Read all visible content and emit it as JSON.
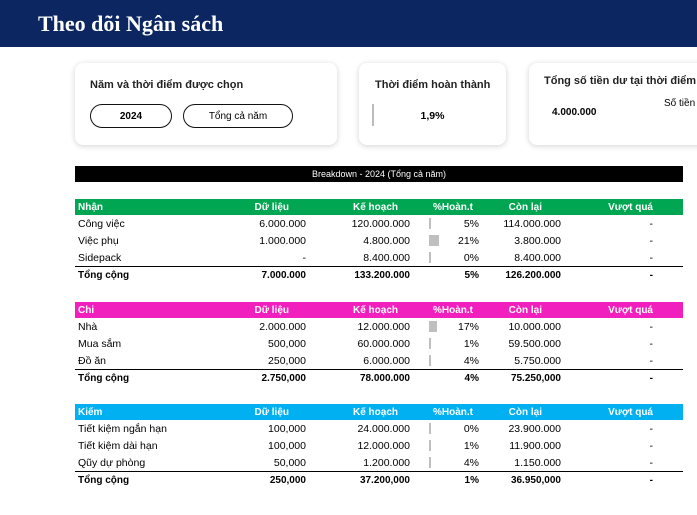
{
  "title": "Theo dõi Ngân sách",
  "cards": {
    "year_card": {
      "title": "Năm và thời điểm được chọn",
      "year": "2024",
      "period": "Tổng cả năm"
    },
    "completion_card": {
      "title": "Thời điểm hoàn thành",
      "value": "1,9%",
      "progress": 0.019
    },
    "balance_card": {
      "title": "Tổng số tiền dư tại thời điểm",
      "value": "4.000.000",
      "sub": "Số tiền"
    }
  },
  "banner": "Breakdown - 2024 (Tổng cả năm)",
  "colors": {
    "header": "#0b2660",
    "income": "#00a651",
    "expense": "#f21fbf",
    "savings": "#00b0f0"
  },
  "columns": {
    "data": "Dữ liệu",
    "plan": "Kế hoạch",
    "pct": "%Hoàn.t",
    "remaining": "Còn lại",
    "over": "Vượt quá"
  },
  "sections": [
    {
      "name": "Nhận",
      "rows": [
        {
          "label": "Công việc",
          "data": "6.000.000",
          "plan": "120.000.000",
          "pct": "5%",
          "pct_value": 0.05,
          "remaining": "114.000.000",
          "over": "-"
        },
        {
          "label": "Việc phụ",
          "data": "1.000.000",
          "plan": "4.800.000",
          "pct": "21%",
          "pct_value": 0.21,
          "remaining": "3.800.000",
          "over": "-"
        },
        {
          "label": "Sidepack",
          "data": "-",
          "plan": "8.400.000",
          "pct": "0%",
          "pct_value": 0,
          "remaining": "8.400.000",
          "over": "-"
        }
      ],
      "total": {
        "label": "Tổng cộng",
        "data": "7.000.000",
        "plan": "133.200.000",
        "pct": "5%",
        "remaining": "126.200.000",
        "over": "-"
      }
    },
    {
      "name": "Chi",
      "rows": [
        {
          "label": "Nhà",
          "data": "2.000.000",
          "plan": "12.000.000",
          "pct": "17%",
          "pct_value": 0.17,
          "remaining": "10.000.000",
          "over": "-"
        },
        {
          "label": "Mua sắm",
          "data": "500,000",
          "plan": "60.000.000",
          "pct": "1%",
          "pct_value": 0.01,
          "remaining": "59.500.000",
          "over": "-"
        },
        {
          "label": "Đồ ăn",
          "data": "250,000",
          "plan": "6.000.000",
          "pct": "4%",
          "pct_value": 0.04,
          "remaining": "5.750.000",
          "over": "-"
        }
      ],
      "total": {
        "label": "Tổng cộng",
        "data": "2.750,000",
        "plan": "78.000.000",
        "pct": "4%",
        "remaining": "75.250,000",
        "over": "-"
      }
    },
    {
      "name": "Kiếm",
      "rows": [
        {
          "label": "Tiết kiệm ngắn hạn",
          "data": "100,000",
          "plan": "24.000.000",
          "pct": "0%",
          "pct_value": 0,
          "remaining": "23.900.000",
          "over": "-"
        },
        {
          "label": "Tiết kiệm dài hạn",
          "data": "100,000",
          "plan": "12.000.000",
          "pct": "1%",
          "pct_value": 0.01,
          "remaining": "11.900.000",
          "over": "-"
        },
        {
          "label": "Qũy dự phòng",
          "data": "50,000",
          "plan": "1.200.000",
          "pct": "4%",
          "pct_value": 0.04,
          "remaining": "1.150.000",
          "over": "-"
        }
      ],
      "total": {
        "label": "Tổng cộng",
        "data": "250,000",
        "plan": "37.200,000",
        "pct": "1%",
        "remaining": "36.950,000",
        "over": "-"
      }
    }
  ]
}
